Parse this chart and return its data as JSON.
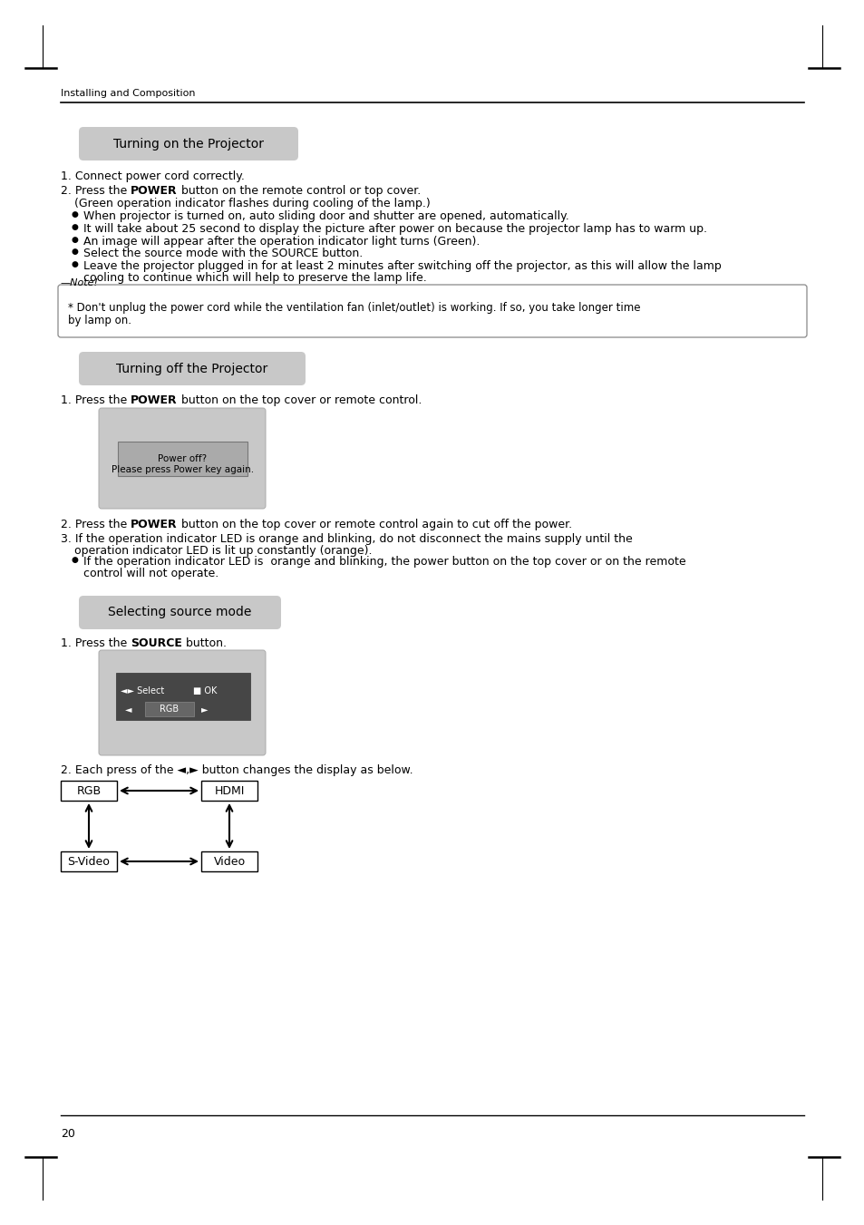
{
  "page_bg": "#ffffff",
  "header_text": "Installing and Composition",
  "section1_title": "Turning on the Projector",
  "section2_title": "Turning off the Projector",
  "section3_title": "Selecting source mode",
  "footer_text": "20",
  "title_bg": "#c8c8c8",
  "screen_bg": "#c8c8c8",
  "note_border": "#888888",
  "bullet1_lines": [
    "When projector is turned on, auto sliding door and shutter are opened, automatically.",
    "It will take about 25 second to display the picture after power on because the projector lamp has to warm up.",
    "An image will appear after the operation indicator light turns (Green).",
    "Select the source mode with the SOURCE button.",
    "Leave the projector plugged in for at least 2 minutes after switching off the projector, as this will allow the lamp",
    "  cooling to continue which will help to preserve the lamp life."
  ],
  "note_line1": "* Don't unplug the power cord while the ventilation fan (inlet/outlet) is working. If so, you take longer time",
  "note_line2": "  by lamp on.",
  "s2_bullet_line1": "If the operation indicator LED is  orange and blinking, the power button on the top cover or on the remote",
  "s2_bullet_line2": "  control will not operate.",
  "s3_item2": "2. Each press of the ◄,► button changes the display as below."
}
